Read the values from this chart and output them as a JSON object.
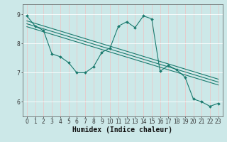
{
  "title": "",
  "xlabel": "Humidex (Indice chaleur)",
  "bg_color": "#cce8e8",
  "grid_color": "#ffffff",
  "line_color": "#1a7a6e",
  "xlim": [
    -0.5,
    23.5
  ],
  "ylim": [
    5.5,
    9.35
  ],
  "yticks": [
    6,
    7,
    8,
    9
  ],
  "xticks": [
    0,
    1,
    2,
    3,
    4,
    5,
    6,
    7,
    8,
    9,
    10,
    11,
    12,
    13,
    14,
    15,
    16,
    17,
    18,
    19,
    20,
    21,
    22,
    23
  ],
  "series1_x": [
    0,
    1,
    2,
    3,
    4,
    5,
    6,
    7,
    8,
    9,
    10,
    11,
    12,
    13,
    14,
    15,
    16,
    17,
    18,
    19,
    20,
    21,
    22,
    23
  ],
  "series1_y": [
    8.95,
    8.6,
    8.45,
    7.65,
    7.55,
    7.35,
    7.0,
    7.0,
    7.2,
    7.7,
    7.85,
    8.6,
    8.75,
    8.55,
    8.95,
    8.85,
    7.05,
    7.25,
    7.1,
    6.85,
    6.1,
    6.0,
    5.85,
    5.95
  ],
  "trend1_x": [
    0,
    23
  ],
  "trend1_y": [
    8.78,
    6.78
  ],
  "trend2_x": [
    0,
    23
  ],
  "trend2_y": [
    8.68,
    6.68
  ],
  "trend3_x": [
    0,
    23
  ],
  "trend3_y": [
    8.58,
    6.58
  ],
  "tick_fontsize": 5.5,
  "xlabel_fontsize": 7.0
}
